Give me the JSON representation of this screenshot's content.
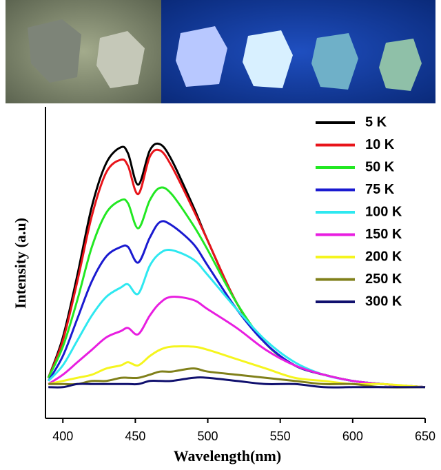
{
  "chart_data": {
    "type": "line",
    "x_label": "Wavelength(nm)",
    "y_label": "Intensity (a.u)",
    "x": [
      390,
      400,
      410,
      420,
      430,
      440,
      445,
      452,
      460,
      467,
      475,
      490,
      500,
      520,
      540,
      560,
      580,
      600,
      620,
      650
    ],
    "series": [
      {
        "name": "5 K",
        "color": "#000000",
        "values": [
          13,
          26,
          46,
          68,
          82,
          87,
          85,
          75,
          86,
          88,
          83,
          68,
          57,
          37,
          24,
          17,
          14,
          12,
          11,
          10
        ]
      },
      {
        "name": "10 K",
        "color": "#e8141a",
        "values": [
          13,
          25,
          44,
          65,
          79,
          83,
          81,
          72,
          84,
          86,
          81,
          67,
          57,
          37,
          24,
          17,
          14,
          12,
          11,
          10
        ]
      },
      {
        "name": "50 K",
        "color": "#22e822",
        "values": [
          13,
          23,
          38,
          55,
          66,
          70,
          69,
          61,
          70,
          74,
          72,
          62,
          54,
          37,
          24,
          17,
          14,
          12,
          11,
          10
        ]
      },
      {
        "name": "75 K",
        "color": "#1a1ad0",
        "values": [
          12,
          20,
          32,
          44,
          52,
          55,
          55,
          50,
          58,
          63,
          62,
          56,
          49,
          35,
          24,
          17,
          14,
          12,
          11,
          10
        ]
      },
      {
        "name": "100 K",
        "color": "#2ee8f0",
        "values": [
          12,
          17,
          25,
          33,
          39,
          42,
          43,
          40,
          49,
          53,
          54,
          51,
          46,
          35,
          25,
          18,
          14,
          12,
          11,
          10
        ]
      },
      {
        "name": "150 K",
        "color": "#e81ee0",
        "values": [
          11,
          14,
          18,
          22,
          26,
          28,
          29,
          27,
          33,
          37,
          39,
          38,
          35,
          29,
          22,
          17,
          14,
          12,
          11,
          10
        ]
      },
      {
        "name": "200 K",
        "color": "#f5f51e",
        "values": [
          11,
          12,
          13,
          14,
          16,
          17,
          18,
          17,
          20,
          22,
          23,
          23,
          22,
          19,
          16,
          13,
          12,
          11,
          11,
          10
        ]
      },
      {
        "name": "250 K",
        "color": "#80801a",
        "values": [
          11,
          11,
          11,
          12,
          12,
          13,
          13,
          13,
          14,
          15,
          15,
          16,
          15,
          14,
          13,
          12,
          11,
          11,
          10,
          10
        ]
      },
      {
        "name": "300 K",
        "color": "#10106e",
        "values": [
          10,
          10,
          11,
          11,
          11,
          11,
          11,
          11,
          12,
          12,
          12,
          13,
          13,
          12,
          11,
          11,
          10,
          10,
          10,
          10
        ]
      }
    ],
    "xlim": [
      388,
      650
    ],
    "ylim": [
      0,
      100
    ],
    "xticks": [
      400,
      450,
      500,
      550,
      600,
      650
    ],
    "legend": "top-right"
  }
}
